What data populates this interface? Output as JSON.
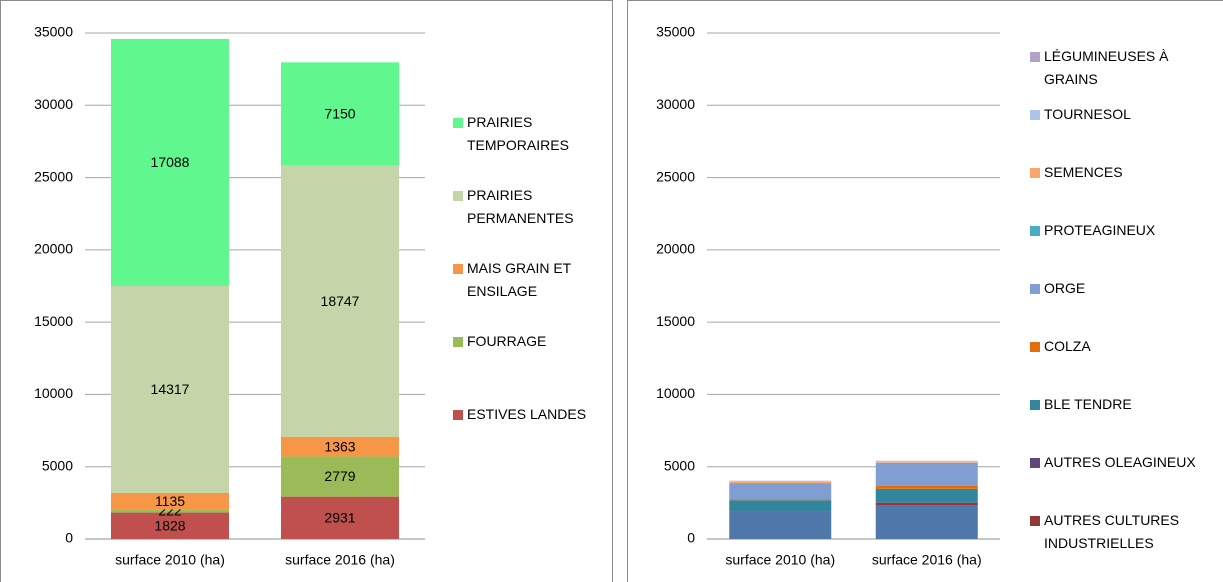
{
  "chart_data": [
    {
      "type": "stacked_bar",
      "categories": [
        "surface 2010 (ha)",
        "surface 2016 (ha)"
      ],
      "series": [
        {
          "name": "ESTIVES LANDES",
          "color": "#c0504d",
          "values": [
            1828,
            2931
          ]
        },
        {
          "name": "FOURRAGE",
          "color": "#9bbb59",
          "values": [
            222,
            2779
          ]
        },
        {
          "name": "MAIS GRAIN ET ENSILAGE",
          "color": "#f79646",
          "values": [
            1135,
            1363
          ]
        },
        {
          "name": "PRAIRIES PERMANENTES",
          "color": "#c4d6a9",
          "values": [
            14317,
            18747
          ]
        },
        {
          "name": "PRAIRIES TEMPORAIRES",
          "color": "#60f78f",
          "values": [
            17088,
            7150
          ]
        }
      ],
      "ylim": [
        0,
        35000
      ],
      "yticks": [
        0,
        5000,
        10000,
        15000,
        20000,
        25000,
        30000,
        35000
      ],
      "grid": true,
      "data_labels": true,
      "legend": "right"
    },
    {
      "type": "stacked_bar",
      "categories": [
        "surface 2010 (ha)",
        "surface 2016 (ha)"
      ],
      "series": [
        {
          "color": "#4f77aa",
          "values": [
            1900,
            2350
          ]
        },
        {
          "name": "AUTRES CULTURES INDUSTRIELLES",
          "color": "#953735",
          "values": [
            30,
            150
          ]
        },
        {
          "name": "AUTRES OLEAGINEUX",
          "color": "#60497a",
          "values": [
            0,
            20
          ]
        },
        {
          "name": "BLE TENDRE",
          "color": "#31859c",
          "values": [
            750,
            950
          ]
        },
        {
          "name": "COLZA",
          "color": "#e46c0a",
          "values": [
            50,
            200
          ]
        },
        {
          "name": "ORGE",
          "color": "#809ed2",
          "values": [
            1100,
            1550
          ]
        },
        {
          "name": "PROTEAGINEUX",
          "color": "#4bacc6",
          "values": [
            40,
            40
          ]
        },
        {
          "name": "SEMENCES",
          "color": "#f9a66a",
          "values": [
            80,
            50
          ]
        },
        {
          "name": "TOURNESOL",
          "color": "#aec3e6",
          "values": [
            60,
            80
          ]
        },
        {
          "name": "LÉGUMINEUSES À GRAINS",
          "color": "#b3a2c7",
          "values": [
            20,
            20
          ]
        }
      ],
      "ylim": [
        0,
        35000
      ],
      "yticks": [
        0,
        5000,
        10000,
        15000,
        20000,
        25000,
        30000,
        35000
      ],
      "grid": true,
      "data_labels": false,
      "legend": "right"
    }
  ]
}
